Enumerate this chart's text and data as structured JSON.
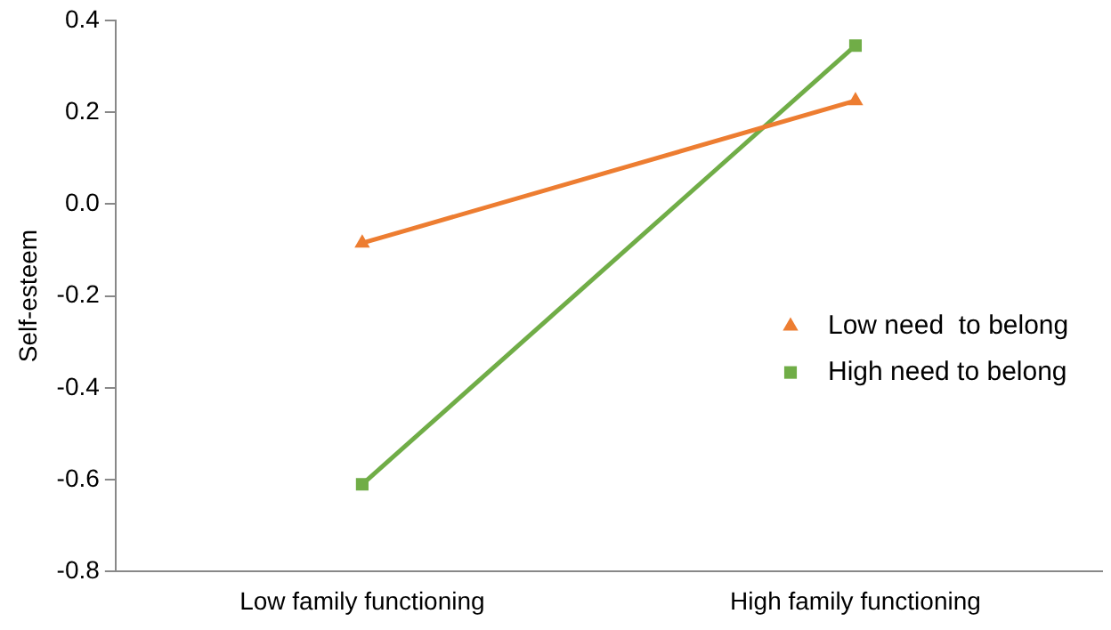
{
  "chart_data": {
    "type": "line",
    "ylabel": "Self-esteem",
    "categories": [
      "Low family functioning",
      "High family functioning"
    ],
    "series": [
      {
        "name": "Low need  to belong",
        "color": "#ed7d31",
        "marker": "triangle",
        "values": [
          -0.085,
          0.225
        ]
      },
      {
        "name": "High need to belong",
        "color": "#70ad47",
        "marker": "square",
        "values": [
          -0.61,
          0.345
        ]
      }
    ],
    "ylim": [
      -0.8,
      0.4
    ],
    "yticks": [
      {
        "value": -0.8,
        "label": "-0.8"
      },
      {
        "value": -0.6,
        "label": "-0.6"
      },
      {
        "value": -0.4,
        "label": "-0.4"
      },
      {
        "value": -0.2,
        "label": "-0.2"
      },
      {
        "value": 0,
        "label": "0.0"
      },
      {
        "value": 0.2,
        "label": "0.2"
      },
      {
        "value": 0.4,
        "label": "0.4"
      }
    ],
    "grid": false,
    "legend": "right",
    "line_style": "solid"
  }
}
